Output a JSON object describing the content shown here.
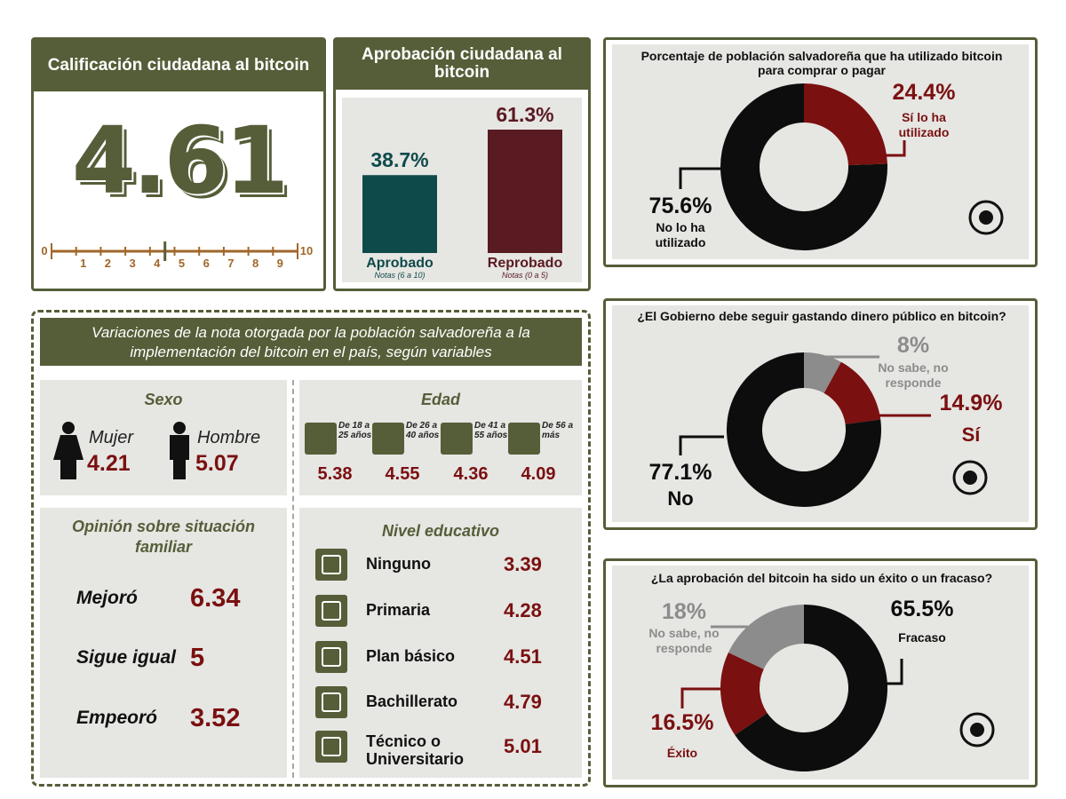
{
  "rating": {
    "title": "Calificación ciudadana al bitcoin",
    "score": 4.61,
    "xlim": [
      0,
      10
    ],
    "xticks": [
      0,
      1,
      2,
      3,
      4,
      5,
      6,
      7,
      8,
      9,
      10
    ]
  },
  "chart_data": [
    {
      "type": "bar",
      "title": "Aprobación ciudadana al bitcoin",
      "categories": [
        "Aprobado",
        "Reprobado"
      ],
      "notes": [
        "Notas (6 a 10)",
        "Notas (0 a 5)"
      ],
      "values": [
        38.7,
        61.3
      ],
      "value_labels": [
        "38.7%",
        "61.3%"
      ],
      "colors": [
        "#0f4a4a",
        "#5a1a22"
      ]
    },
    {
      "type": "pie",
      "title": "Porcentaje de población salvadoreña que ha utilizado bitcoin para comprar o pagar",
      "categories": [
        "Sí lo ha utilizado",
        "No lo ha utilizado"
      ],
      "values": [
        24.4,
        75.6
      ],
      "value_labels": [
        "24.4%",
        "75.6%"
      ],
      "colors": [
        "#7a1010",
        "#0d0d0d"
      ]
    },
    {
      "type": "pie",
      "title": "¿El Gobierno debe seguir gastando dinero público en bitcoin?",
      "categories": [
        "No sabe, no responde",
        "Sí",
        "No"
      ],
      "values": [
        8,
        14.9,
        77.1
      ],
      "value_labels": [
        "8%",
        "14.9%",
        "77.1%"
      ],
      "colors": [
        "#8c8c8c",
        "#7a1010",
        "#0d0d0d"
      ]
    },
    {
      "type": "pie",
      "title": "¿La aprobación del bitcoin ha sido un éxito o un fracaso?",
      "categories": [
        "Fracaso",
        "Éxito",
        "No sabe, no responde"
      ],
      "values": [
        65.5,
        16.5,
        18
      ],
      "value_labels": [
        "65.5%",
        "16.5%",
        "18%"
      ],
      "colors": [
        "#0d0d0d",
        "#7a1010",
        "#8c8c8c"
      ]
    }
  ],
  "variations": {
    "title": "Variaciones de la nota otorgada por la población salvadoreña a la implementación del bitcoin en el país, según variables",
    "sexo": {
      "title": "Sexo",
      "items": [
        {
          "label": "Mujer",
          "value": 4.21
        },
        {
          "label": "Hombre",
          "value": 5.07
        }
      ]
    },
    "edad": {
      "title": "Edad",
      "items": [
        {
          "label": "De 18 a 25 años",
          "value": 5.38
        },
        {
          "label": "De 26 a 40 años",
          "value": 4.55
        },
        {
          "label": "De 41 a 55 años",
          "value": 4.36
        },
        {
          "label": "De 56 a más",
          "value": 4.09
        }
      ]
    },
    "familia": {
      "title": "Opinión sobre situación familiar",
      "items": [
        {
          "label": "Mejoró",
          "value": 6.34
        },
        {
          "label": "Sigue igual",
          "value": 5
        },
        {
          "label": "Empeoró",
          "value": 3.52
        }
      ]
    },
    "educacion": {
      "title": "Nivel educativo",
      "items": [
        {
          "label": "Ninguno",
          "value": 3.39
        },
        {
          "label": "Primaria",
          "value": 4.28
        },
        {
          "label": "Plan básico",
          "value": 4.51
        },
        {
          "label": "Bachillerato",
          "value": 4.79
        },
        {
          "label": "Técnico o Universitario",
          "value": 5.01
        }
      ]
    }
  }
}
